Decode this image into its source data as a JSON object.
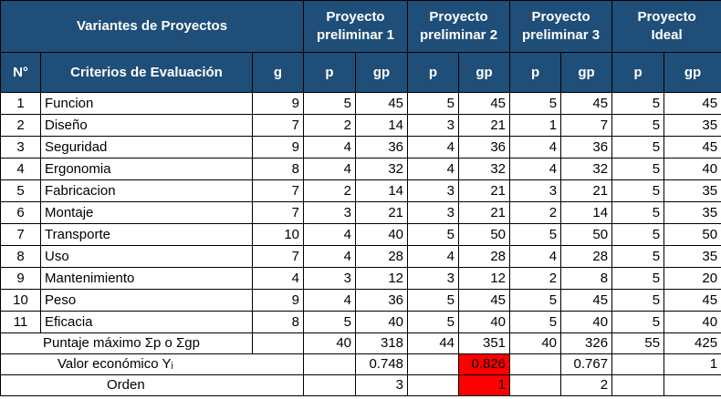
{
  "header": {
    "variants_label": "Variantes de Proyectos",
    "projects": [
      "Proyecto preliminar 1",
      "Proyecto preliminar 2",
      "Proyecto preliminar 3",
      "Proyecto Ideal"
    ],
    "project_lines": [
      [
        "Proyecto",
        "preliminar 1"
      ],
      [
        "Proyecto",
        "preliminar 2"
      ],
      [
        "Proyecto",
        "preliminar 3"
      ],
      [
        "Proyecto",
        "Ideal"
      ]
    ],
    "no_label": "N°",
    "criteria_label": "Criterios de Evaluación",
    "g_label": "g",
    "p_label": "p",
    "gp_label": "gp"
  },
  "rows": [
    {
      "n": "1",
      "criterio": "Funcion",
      "g": "9",
      "p1": "5",
      "gp1": "45",
      "p2": "5",
      "gp2": "45",
      "p3": "5",
      "gp3": "45",
      "pi": "5",
      "gpi": "45"
    },
    {
      "n": "2",
      "criterio": "Diseño",
      "g": "7",
      "p1": "2",
      "gp1": "14",
      "p2": "3",
      "gp2": "21",
      "p3": "1",
      "gp3": "7",
      "pi": "5",
      "gpi": "35"
    },
    {
      "n": "3",
      "criterio": "Seguridad",
      "g": "9",
      "p1": "4",
      "gp1": "36",
      "p2": "4",
      "gp2": "36",
      "p3": "4",
      "gp3": "36",
      "pi": "5",
      "gpi": "45"
    },
    {
      "n": "4",
      "criterio": "Ergonomia",
      "g": "8",
      "p1": "4",
      "gp1": "32",
      "p2": "4",
      "gp2": "32",
      "p3": "4",
      "gp3": "32",
      "pi": "5",
      "gpi": "40"
    },
    {
      "n": "5",
      "criterio": "Fabricacion",
      "g": "7",
      "p1": "2",
      "gp1": "14",
      "p2": "3",
      "gp2": "21",
      "p3": "3",
      "gp3": "21",
      "pi": "5",
      "gpi": "35"
    },
    {
      "n": "6",
      "criterio": "Montaje",
      "g": "7",
      "p1": "3",
      "gp1": "21",
      "p2": "3",
      "gp2": "21",
      "p3": "2",
      "gp3": "14",
      "pi": "5",
      "gpi": "35"
    },
    {
      "n": "7",
      "criterio": "Transporte",
      "g": "10",
      "p1": "4",
      "gp1": "40",
      "p2": "5",
      "gp2": "50",
      "p3": "5",
      "gp3": "50",
      "pi": "5",
      "gpi": "50"
    },
    {
      "n": "8",
      "criterio": "Uso",
      "g": "7",
      "p1": "4",
      "gp1": "28",
      "p2": "4",
      "gp2": "28",
      "p3": "4",
      "gp3": "28",
      "pi": "5",
      "gpi": "35"
    },
    {
      "n": "9",
      "criterio": "Mantenimiento",
      "g": "4",
      "p1": "3",
      "gp1": "12",
      "p2": "3",
      "gp2": "12",
      "p3": "2",
      "gp3": "8",
      "pi": "5",
      "gpi": "20"
    },
    {
      "n": "10",
      "criterio": "Peso",
      "g": "9",
      "p1": "4",
      "gp1": "36",
      "p2": "5",
      "gp2": "45",
      "p3": "5",
      "gp3": "45",
      "pi": "5",
      "gpi": "45"
    },
    {
      "n": "11",
      "criterio": "Eficacia",
      "g": "8",
      "p1": "5",
      "gp1": "40",
      "p2": "5",
      "gp2": "40",
      "p3": "5",
      "gp3": "40",
      "pi": "5",
      "gpi": "40"
    }
  ],
  "totals": {
    "label": "Puntaje máximo Σp o Σgp",
    "p1": "40",
    "gp1": "318",
    "p2": "44",
    "gp2": "351",
    "p3": "40",
    "gp3": "326",
    "pi": "55",
    "gpi": "425"
  },
  "valor": {
    "label": "Valor económico Yᵢ",
    "v1": "0.748",
    "v2": "0.826",
    "v3": "0.767",
    "vi": "1"
  },
  "orden": {
    "label": "Orden",
    "o1": "3",
    "o2": "1",
    "o3": "2"
  },
  "colors": {
    "header_bg": "#1f4e79",
    "highlight": "#ff0000"
  }
}
